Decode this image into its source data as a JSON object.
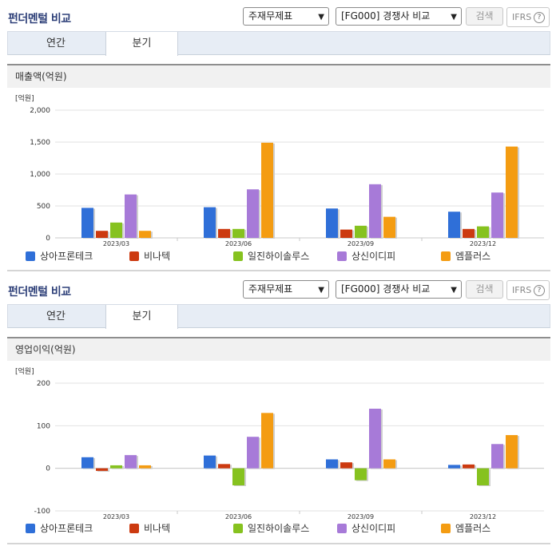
{
  "sections": [
    {
      "title": "펀더멘털 비교",
      "select_a": "주재무제표",
      "select_b": "[FG000] 경쟁사 비교",
      "search_label": "검색",
      "ifrs_label": "IFRS",
      "help_glyph": "?",
      "tabs": [
        "연간",
        "분기"
      ],
      "active_tab": "분기",
      "chart_title": "매출액(억원)",
      "unit_label": "[억원]"
    },
    {
      "title": "펀더멘털 비교",
      "select_a": "주재무제표",
      "select_b": "[FG000] 경쟁사 비교",
      "search_label": "검색",
      "ifrs_label": "IFRS",
      "help_glyph": "?",
      "tabs": [
        "연간",
        "분기"
      ],
      "active_tab": "분기",
      "chart_title": "영업이익(억원)",
      "unit_label": "[억원]"
    }
  ],
  "colors": {
    "series": [
      "#2f6fd8",
      "#cc3a10",
      "#86c21f",
      "#a77ad8",
      "#f49c12"
    ],
    "title": "#2d3f78",
    "tabbar": "#e7edf5"
  },
  "chart_data": [
    {
      "type": "bar",
      "title": "매출액(억원)",
      "unit": "[억원]",
      "categories": [
        "2023/03",
        "2023/06",
        "2023/09",
        "2023/12"
      ],
      "ylim": [
        0,
        2000
      ],
      "yticks": [
        0,
        500,
        1000,
        1500,
        2000
      ],
      "ytick_labels": [
        "0",
        "500",
        "1,000",
        "1,500",
        "2,000"
      ],
      "series": [
        {
          "name": "상아프론테크",
          "values": [
            470,
            480,
            460,
            410
          ]
        },
        {
          "name": "비나텍",
          "values": [
            110,
            140,
            130,
            140
          ]
        },
        {
          "name": "일진하이솔루스",
          "values": [
            240,
            140,
            190,
            180
          ]
        },
        {
          "name": "상신이디피",
          "values": [
            680,
            760,
            840,
            710
          ]
        },
        {
          "name": "엠플러스",
          "values": [
            110,
            1490,
            330,
            1430
          ]
        }
      ]
    },
    {
      "type": "bar",
      "title": "영업이익(억원)",
      "unit": "[억원]",
      "categories": [
        "2023/03",
        "2023/06",
        "2023/09",
        "2023/12"
      ],
      "ylim": [
        -100,
        200
      ],
      "yticks": [
        -100,
        0,
        100,
        200
      ],
      "ytick_labels": [
        "-100",
        "0",
        "100",
        "200"
      ],
      "series": [
        {
          "name": "상아프론테크",
          "values": [
            26,
            30,
            21,
            8
          ]
        },
        {
          "name": "비나텍",
          "values": [
            -6,
            10,
            14,
            9
          ]
        },
        {
          "name": "일진하이솔루스",
          "values": [
            7,
            -40,
            -28,
            -40
          ]
        },
        {
          "name": "상신이디피",
          "values": [
            31,
            74,
            140,
            57
          ]
        },
        {
          "name": "엠플러스",
          "values": [
            7,
            130,
            21,
            78
          ]
        }
      ]
    }
  ]
}
